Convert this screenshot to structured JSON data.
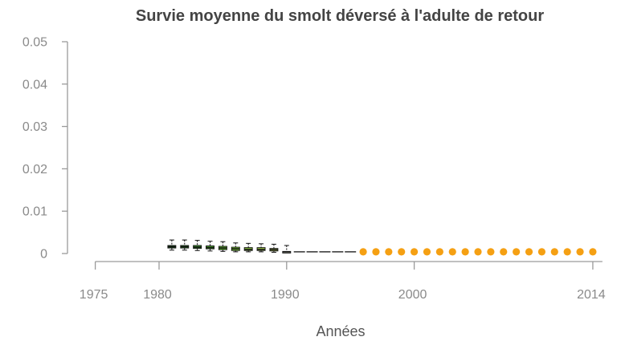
{
  "chart_data": {
    "type": "box",
    "title": "Survie moyenne du smolt déversé à l'adulte de retour",
    "xlabel": "Années",
    "ylabel": "",
    "xlim": [
      1975,
      2014.5
    ],
    "ylim": [
      0,
      0.05
    ],
    "x_ticks": [
      {
        "value": 1975,
        "label": "1975"
      },
      {
        "value": 1980,
        "label": "1980"
      },
      {
        "value": 1990,
        "label": "1990"
      },
      {
        "value": 2000,
        "label": "2000"
      },
      {
        "value": 2014,
        "label": "2014"
      }
    ],
    "y_ticks": [
      {
        "value": 0,
        "label": "0"
      },
      {
        "value": 0.01,
        "label": "0.01"
      },
      {
        "value": 0.02,
        "label": "0.02"
      },
      {
        "value": 0.03,
        "label": "0.03"
      },
      {
        "value": 0.04,
        "label": "0.04"
      },
      {
        "value": 0.05,
        "label": "0.05"
      }
    ],
    "boxes": [
      {
        "year": 1981,
        "min": 0.0008,
        "q1": 0.0013,
        "median": 0.0016,
        "q3": 0.0019,
        "max": 0.0032,
        "color": "#1e6b1e"
      },
      {
        "year": 1982,
        "min": 0.0008,
        "q1": 0.0013,
        "median": 0.0016,
        "q3": 0.0019,
        "max": 0.0032,
        "color": "#2a8a22"
      },
      {
        "year": 1983,
        "min": 0.0007,
        "q1": 0.0012,
        "median": 0.0015,
        "q3": 0.0019,
        "max": 0.0031,
        "color": "#3aa12a"
      },
      {
        "year": 1984,
        "min": 0.0006,
        "q1": 0.0011,
        "median": 0.0014,
        "q3": 0.0018,
        "max": 0.0029,
        "color": "#4fb32e"
      },
      {
        "year": 1985,
        "min": 0.0005,
        "q1": 0.0009,
        "median": 0.0013,
        "q3": 0.0017,
        "max": 0.0028,
        "color": "#66c233"
      },
      {
        "year": 1986,
        "min": 0.0004,
        "q1": 0.0007,
        "median": 0.0011,
        "q3": 0.0015,
        "max": 0.0025,
        "color": "#7fd13a"
      },
      {
        "year": 1987,
        "min": 0.0004,
        "q1": 0.0007,
        "median": 0.001,
        "q3": 0.0014,
        "max": 0.0024,
        "color": "#9bdc45"
      },
      {
        "year": 1988,
        "min": 0.0004,
        "q1": 0.0007,
        "median": 0.001,
        "q3": 0.0014,
        "max": 0.0023,
        "color": "#b6e552"
      },
      {
        "year": 1989,
        "min": 0.0003,
        "q1": 0.0006,
        "median": 0.0009,
        "q3": 0.0012,
        "max": 0.0022,
        "color": "#d3ee64"
      },
      {
        "year": 1990,
        "min": 0.0002,
        "q1": 0.0003,
        "median": 0.0004,
        "q3": 0.0005,
        "max": 0.0019,
        "color": "#f3f8e0"
      }
    ],
    "dashed_series": {
      "x": [
        1991,
        1992,
        1993,
        1994,
        1995
      ],
      "y": [
        0.0004,
        0.0004,
        0.0004,
        0.0004,
        0.0004
      ],
      "color": "#111111"
    },
    "points_series": {
      "x": [
        1996,
        1997,
        1998,
        1999,
        2000,
        2001,
        2002,
        2003,
        2004,
        2005,
        2006,
        2007,
        2008,
        2009,
        2010,
        2011,
        2012,
        2013,
        2014
      ],
      "y": [
        0.0004,
        0.0004,
        0.0004,
        0.0004,
        0.0004,
        0.0004,
        0.0004,
        0.0004,
        0.0004,
        0.0004,
        0.0004,
        0.0004,
        0.0004,
        0.0004,
        0.0004,
        0.0004,
        0.0004,
        0.0004,
        0.0004
      ],
      "color": "#f5a013"
    }
  }
}
